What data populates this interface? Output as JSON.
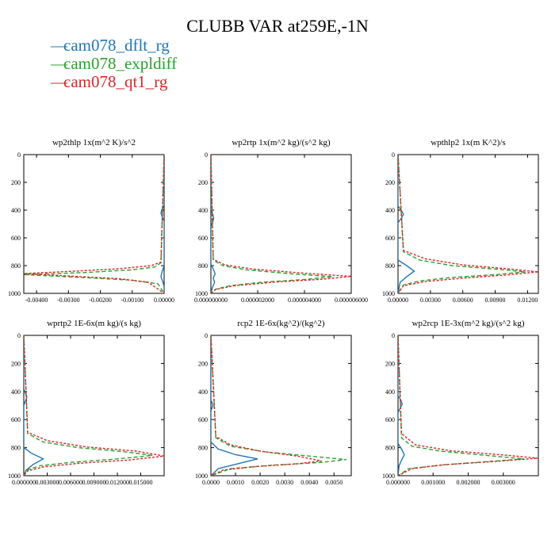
{
  "title": "CLUBB VAR at259E,-1N",
  "colors": {
    "dflt": "#1f77b4",
    "expldiff": "#2ca02c",
    "qt1": "#d62728"
  },
  "legend": [
    {
      "label": "cam078_dflt_rg",
      "color": "#1f77b4"
    },
    {
      "label": "cam078_expldiff",
      "color": "#2ca02c"
    },
    {
      "label": "cam078_qt1_rg",
      "color": "#d62728"
    }
  ],
  "chart_data": [
    {
      "type": "line",
      "title": "wp2thlp   1x(m^2 K)/s^2",
      "xlim": [
        -0.0044,
        0.0
      ],
      "ylim": [
        1000,
        0
      ],
      "xticks": [
        -0.004,
        -0.003,
        -0.002,
        -0.001,
        0.0
      ],
      "xtick_labels": [
        "-0.00400",
        "-0.00300",
        "-0.00200",
        "-0.00100",
        "0.00000"
      ],
      "yticks": [
        0,
        200,
        400,
        600,
        800,
        1000
      ],
      "series": [
        {
          "key": "dflt",
          "x": [
            0,
            0,
            -5e-05,
            -0.0001,
            -6e-05,
            0,
            0,
            -6e-05,
            -0.0001,
            -5e-05,
            0,
            0,
            0
          ],
          "y": [
            0,
            360,
            390,
            420,
            450,
            480,
            800,
            840,
            880,
            910,
            950,
            980,
            1000
          ]
        },
        {
          "key": "expldiff",
          "x": [
            0,
            -0.0001,
            -0.0003,
            -0.001,
            -0.0025,
            -0.0044,
            -0.0026,
            -0.001,
            -0.0002,
            0
          ],
          "y": [
            0,
            780,
            810,
            830,
            850,
            865,
            885,
            905,
            930,
            1000
          ]
        },
        {
          "key": "qt1",
          "x": [
            0,
            -0.0001,
            -0.0004,
            -0.0014,
            -0.003,
            -0.0044,
            -0.003,
            -0.0014,
            -0.0005,
            0
          ],
          "y": [
            0,
            775,
            800,
            822,
            842,
            857,
            875,
            895,
            920,
            1000
          ]
        }
      ]
    },
    {
      "type": "line",
      "title": "wp2rtp   1x(m^2 kg)/(s^2 kg)",
      "xlim": [
        0.0,
        6e-06
      ],
      "ylim": [
        1000,
        0
      ],
      "xticks": [
        0.0,
        2e-06,
        4e-06,
        6e-06
      ],
      "xtick_labels": [
        "0.000000000",
        "0.000002000",
        "0.000004000",
        "0.000006000"
      ],
      "yticks": [
        0,
        200,
        400,
        600,
        800,
        1000
      ],
      "series": [
        {
          "key": "dflt",
          "x": [
            0,
            0,
            8e-08,
            1.2e-07,
            7e-08,
            0,
            0,
            1.2e-07,
            1.8e-07,
            1e-07,
            1.6e-07,
            6e-08,
            0
          ],
          "y": [
            0,
            400,
            430,
            460,
            490,
            520,
            790,
            830,
            860,
            890,
            920,
            960,
            1000
          ]
        },
        {
          "key": "expldiff",
          "x": [
            0,
            1e-07,
            5e-07,
            1.5e-06,
            3.5e-06,
            5.2e-06,
            4e-06,
            2.2e-06,
            8e-07,
            2e-07,
            0
          ],
          "y": [
            0,
            760,
            800,
            830,
            860,
            880,
            900,
            920,
            945,
            970,
            1000
          ]
        },
        {
          "key": "qt1",
          "x": [
            0,
            1e-07,
            6e-07,
            1.8e-06,
            4e-06,
            6e-06,
            4.8e-06,
            2.8e-06,
            1e-06,
            2e-07,
            0
          ],
          "y": [
            0,
            755,
            795,
            825,
            855,
            878,
            898,
            918,
            945,
            972,
            1000
          ]
        }
      ]
    },
    {
      "type": "line",
      "title": "wpthlp2   1x(m K^2)/s",
      "xlim": [
        0.0,
        0.013
      ],
      "ylim": [
        1000,
        0
      ],
      "xticks": [
        0.0,
        0.003,
        0.006,
        0.009,
        0.012
      ],
      "xtick_labels": [
        "0.00000",
        "0.00300",
        "0.00600",
        "0.00900",
        "0.01200"
      ],
      "yticks": [
        0,
        200,
        400,
        600,
        800,
        1000
      ],
      "series": [
        {
          "key": "dflt",
          "x": [
            0,
            0,
            0.0003,
            0.0005,
            0.0003,
            0,
            0,
            0.0008,
            0.0015,
            0.0008,
            0.0002,
            0
          ],
          "y": [
            0,
            370,
            400,
            430,
            460,
            490,
            760,
            800,
            840,
            880,
            920,
            1000
          ]
        },
        {
          "key": "expldiff",
          "x": [
            0,
            0.0005,
            0.002,
            0.005,
            0.009,
            0.0118,
            0.009,
            0.005,
            0.002,
            0.0005,
            0
          ],
          "y": [
            0,
            700,
            760,
            800,
            825,
            845,
            865,
            885,
            910,
            940,
            1000
          ]
        },
        {
          "key": "qt1",
          "x": [
            0,
            0.0005,
            0.0025,
            0.006,
            0.01,
            0.013,
            0.01,
            0.006,
            0.0025,
            0.0005,
            0
          ],
          "y": [
            0,
            690,
            750,
            795,
            822,
            845,
            868,
            890,
            915,
            945,
            1000
          ]
        }
      ]
    },
    {
      "type": "line",
      "title": "wprtp2   1E-6x(m kg)/(s kg)",
      "xlim": [
        0.0,
        0.018
      ],
      "ylim": [
        1000,
        0
      ],
      "xticks": [
        0.0,
        0.003,
        0.006,
        0.009,
        0.012,
        0.015
      ],
      "xtick_labels": [
        "0.000000",
        "0.003000",
        "0.006000",
        "0.009000",
        "0.012000",
        "0.015000"
      ],
      "yticks": [
        0,
        200,
        400,
        600,
        800,
        1000
      ],
      "series": [
        {
          "key": "dflt",
          "x": [
            0,
            0,
            0.0002,
            0.0004,
            0.0002,
            0,
            0,
            0.001,
            0.0025,
            0.0012,
            0.0003,
            0
          ],
          "y": [
            0,
            380,
            410,
            440,
            470,
            500,
            800,
            840,
            880,
            920,
            960,
            1000
          ]
        },
        {
          "key": "expldiff",
          "x": [
            0,
            0.0005,
            0.0025,
            0.007,
            0.013,
            0.0165,
            0.012,
            0.006,
            0.002,
            0.0004,
            0
          ],
          "y": [
            0,
            700,
            760,
            800,
            830,
            855,
            880,
            905,
            930,
            960,
            1000
          ]
        },
        {
          "key": "qt1",
          "x": [
            0,
            0.0005,
            0.003,
            0.008,
            0.0145,
            0.018,
            0.0135,
            0.007,
            0.0025,
            0.0005,
            0
          ],
          "y": [
            0,
            690,
            750,
            795,
            825,
            860,
            888,
            912,
            938,
            965,
            1000
          ]
        }
      ]
    },
    {
      "type": "line",
      "title": "rcp2   1E-6x(kg^2)/(kg^2)",
      "xlim": [
        0.0,
        0.0057
      ],
      "ylim": [
        1000,
        0
      ],
      "xticks": [
        0.0,
        0.001,
        0.002,
        0.003,
        0.004,
        0.005
      ],
      "xtick_labels": [
        "0.0000",
        "0.0010",
        "0.0020",
        "0.0030",
        "0.0040",
        "0.0050"
      ],
      "yticks": [
        0,
        200,
        400,
        600,
        800,
        1000
      ],
      "series": [
        {
          "key": "dflt",
          "x": [
            0,
            0,
            5e-05,
            8e-05,
            4e-05,
            0,
            0,
            0.0003,
            0.001,
            0.0019,
            0.0012,
            0.0003,
            0
          ],
          "y": [
            0,
            460,
            480,
            500,
            520,
            540,
            760,
            810,
            850,
            880,
            910,
            950,
            1000
          ]
        },
        {
          "key": "expldiff",
          "x": [
            0,
            0.0002,
            0.0008,
            0.0022,
            0.004,
            0.0055,
            0.0045,
            0.0025,
            0.0008,
            0
          ],
          "y": [
            0,
            730,
            790,
            830,
            860,
            885,
            905,
            925,
            950,
            1000
          ]
        },
        {
          "key": "qt1",
          "x": [
            0,
            0.0002,
            0.0008,
            0.002,
            0.0035,
            0.0045,
            0.0035,
            0.0018,
            0.0005,
            0
          ],
          "y": [
            0,
            720,
            780,
            825,
            860,
            895,
            915,
            935,
            960,
            1000
          ]
        }
      ]
    },
    {
      "type": "line",
      "title": "wp2rcp   1E-3x(m^2 kg)/(s^2 kg)",
      "xlim": [
        0.0,
        0.004
      ],
      "ylim": [
        1000,
        0
      ],
      "xticks": [
        0.0,
        0.001,
        0.002,
        0.003
      ],
      "xtick_labels": [
        "0.000000",
        "0.001000",
        "0.002000",
        "0.003000"
      ],
      "yticks": [
        0,
        200,
        400,
        600,
        800,
        1000
      ],
      "series": [
        {
          "key": "dflt",
          "x": [
            0,
            0,
            8e-05,
            0.00012,
            6e-05,
            0,
            0,
            0.0001,
            0.00018,
            0.0001,
            3e-05,
            0
          ],
          "y": [
            0,
            430,
            460,
            490,
            520,
            550,
            770,
            810,
            850,
            890,
            930,
            1000
          ]
        },
        {
          "key": "expldiff",
          "x": [
            0,
            0.0001,
            0.0004,
            0.0012,
            0.0025,
            0.0036,
            0.0025,
            0.0012,
            0.0003,
            0
          ],
          "y": [
            0,
            730,
            790,
            825,
            855,
            880,
            900,
            925,
            950,
            1000
          ]
        },
        {
          "key": "qt1",
          "x": [
            0,
            0.0001,
            0.0005,
            0.0015,
            0.003,
            0.004,
            0.0028,
            0.0013,
            0.0004,
            0
          ],
          "y": [
            0,
            700,
            780,
            822,
            852,
            875,
            898,
            922,
            950,
            1000
          ]
        }
      ]
    }
  ]
}
